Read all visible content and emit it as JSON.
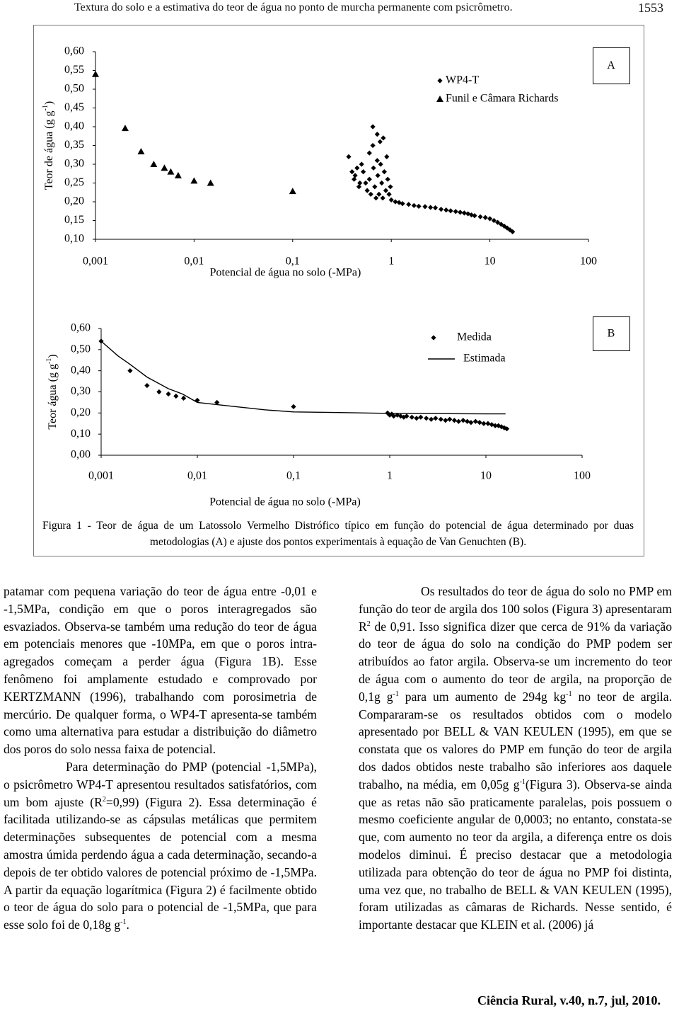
{
  "header": {
    "title": "Textura do solo e a estimativa do teor de água no ponto de murcha permanente com psicrômetro.",
    "page": "1553"
  },
  "chart_data": [
    {
      "type": "scatter",
      "panel": "A",
      "xscale": "log",
      "xlim": [
        0.001,
        100
      ],
      "xticks": [
        {
          "value": 0.001,
          "label": "0,001"
        },
        {
          "value": 0.01,
          "label": "0,01"
        },
        {
          "value": 0.1,
          "label": "0,1"
        },
        1,
        10,
        100
      ],
      "ylim": [
        0.1,
        0.6
      ],
      "yticks": [
        {
          "value": 0.1,
          "label": "0,10"
        },
        {
          "value": 0.15,
          "label": "0,15"
        },
        {
          "value": 0.2,
          "label": "0,20"
        },
        {
          "value": 0.25,
          "label": "0,25"
        },
        {
          "value": 0.3,
          "label": "0,30"
        },
        {
          "value": 0.35,
          "label": "0,35"
        },
        {
          "value": 0.4,
          "label": "0,40"
        },
        {
          "value": 0.45,
          "label": "0,45"
        },
        {
          "value": 0.5,
          "label": "0,50"
        },
        {
          "value": 0.55,
          "label": "0,55"
        },
        {
          "value": 0.6,
          "label": "0,60"
        }
      ],
      "xlabel": "Potencial de água no solo (-MPa)",
      "ylabel": {
        "text": "Teor de água (g g",
        "sup": "-1",
        "end": ")"
      },
      "legend": "upper right",
      "series": [
        {
          "name": "WP4-T",
          "style": "diamond",
          "color": "#000000",
          "x": [
            0.37,
            0.4,
            0.42,
            0.43,
            0.45,
            0.47,
            0.48,
            0.5,
            0.52,
            0.55,
            0.57,
            0.6,
            0.6,
            0.62,
            0.65,
            0.65,
            0.66,
            0.68,
            0.7,
            0.72,
            0.72,
            0.73,
            0.75,
            0.77,
            0.78,
            0.8,
            0.82,
            0.83,
            0.85,
            0.88,
            0.9,
            0.92,
            0.95,
            0.98,
            1.0,
            1.1,
            1.2,
            1.3,
            1.5,
            1.7,
            1.9,
            2.2,
            2.5,
            2.8,
            3.2,
            3.6,
            4,
            4.5,
            5,
            5.5,
            6,
            6.5,
            7,
            8,
            9,
            10,
            11,
            12,
            13,
            14,
            15,
            16,
            17
          ],
          "values": [
            0.32,
            0.28,
            0.26,
            0.27,
            0.29,
            0.24,
            0.25,
            0.3,
            0.28,
            0.25,
            0.23,
            0.33,
            0.26,
            0.22,
            0.4,
            0.35,
            0.29,
            0.24,
            0.21,
            0.38,
            0.31,
            0.27,
            0.22,
            0.36,
            0.3,
            0.25,
            0.21,
            0.37,
            0.28,
            0.23,
            0.32,
            0.26,
            0.22,
            0.24,
            0.205,
            0.2,
            0.198,
            0.195,
            0.193,
            0.19,
            0.188,
            0.187,
            0.185,
            0.184,
            0.18,
            0.178,
            0.176,
            0.174,
            0.172,
            0.17,
            0.168,
            0.165,
            0.163,
            0.16,
            0.158,
            0.155,
            0.15,
            0.145,
            0.14,
            0.135,
            0.13,
            0.125,
            0.12
          ]
        },
        {
          "name": "Funil e Câmara Richards",
          "style": "triangle",
          "color": "#000000",
          "x": [
            0.001,
            0.002,
            0.0029,
            0.0039,
            0.005,
            0.0058,
            0.0069,
            0.01,
            0.0147,
            0.1
          ],
          "values": [
            0.54,
            0.396,
            0.334,
            0.3,
            0.29,
            0.28,
            0.27,
            0.256,
            0.25,
            0.228
          ]
        }
      ]
    },
    {
      "type": "scatter",
      "panel": "B",
      "xscale": "log",
      "xlim": [
        0.001,
        100
      ],
      "xticks": [
        {
          "value": 0.001,
          "label": "0,001"
        },
        {
          "value": 0.01,
          "label": "0,01"
        },
        {
          "value": 0.1,
          "label": "0,1"
        },
        1,
        10,
        100
      ],
      "ylim": [
        0,
        0.6
      ],
      "yticks": [
        {
          "value": 0,
          "label": "0,00"
        },
        {
          "value": 0.1,
          "label": "0,10"
        },
        {
          "value": 0.2,
          "label": "0,20"
        },
        {
          "value": 0.3,
          "label": "0,30"
        },
        {
          "value": 0.4,
          "label": "0,40"
        },
        {
          "value": 0.5,
          "label": "0,50"
        },
        {
          "value": 0.6,
          "label": "0,60"
        }
      ],
      "xlabel": "Potencial de água no solo (-MPa)",
      "ylabel": {
        "text": "Teor água  (g g",
        "sup": "-1",
        "end": ")"
      },
      "legend": "upper right",
      "series": [
        {
          "name": "Medida",
          "style": "diamond",
          "color": "#000000",
          "x": [
            0.001,
            0.002,
            0.003,
            0.004,
            0.005,
            0.006,
            0.0072,
            0.01,
            0.016,
            0.1,
            0.95,
            1.0,
            1.05,
            1.1,
            1.2,
            1.3,
            1.4,
            1.5,
            1.7,
            1.9,
            2.1,
            2.4,
            2.7,
            3.0,
            3.4,
            3.8,
            4.2,
            4.7,
            5.2,
            5.8,
            6.4,
            7.0,
            7.8,
            8.6,
            9.5,
            10.5,
            11.5,
            12.5,
            13.5,
            14.5,
            15.5,
            16.5
          ],
          "values": [
            0.54,
            0.4,
            0.33,
            0.3,
            0.29,
            0.28,
            0.27,
            0.26,
            0.25,
            0.23,
            0.2,
            0.19,
            0.195,
            0.185,
            0.19,
            0.185,
            0.18,
            0.185,
            0.18,
            0.175,
            0.18,
            0.175,
            0.17,
            0.175,
            0.17,
            0.165,
            0.17,
            0.165,
            0.16,
            0.165,
            0.16,
            0.155,
            0.16,
            0.155,
            0.15,
            0.15,
            0.145,
            0.14,
            0.14,
            0.135,
            0.13,
            0.125
          ]
        },
        {
          "name": "Estimada",
          "style": "line",
          "color": "#000000",
          "x": [
            0.001,
            0.0015,
            0.002,
            0.003,
            0.005,
            0.007,
            0.01,
            0.02,
            0.05,
            0.1,
            0.3,
            1,
            3,
            10,
            16
          ],
          "values": [
            0.54,
            0.47,
            0.43,
            0.37,
            0.315,
            0.29,
            0.25,
            0.235,
            0.215,
            0.205,
            0.202,
            0.198,
            0.197,
            0.196,
            0.196
          ]
        }
      ]
    }
  ],
  "caption": "Figura 1 - Teor de água de um Latossolo Vermelho Distrófico típico em função do potencial de água determinado por duas metodologias (A) e ajuste dos pontos experimentais à equação de Van Genuchten (B).",
  "columns": [
    {
      "paragraphs": [
        {
          "runs": [
            "patamar com pequena variação do teor de água entre -0,01 e -1,5MPa, condição em que o poros interagregados são esvaziados. Observa-se também uma redução do teor de água em potenciais menores que -10MPa, em que o poros intra-agregados começam a perder água (Figura 1B). Esse fenômeno foi amplamente estudado e comprovado por KERTZMANN (1996), trabalhando com porosimetria de mercúrio. De qualquer forma, o WP4-T apresenta-se também como uma alternativa para estudar a distribuição do diâmetro dos poros do solo nessa faixa de potencial."
          ]
        },
        {
          "runs": [
            "Para determinação do PMP (potencial -1,5MPa), o psicrômetro WP4-T apresentou resultados satisfatórios, com um bom ajuste (R",
            {
              "sup": "2"
            },
            "=0,99) (Figura 2). Essa determinação é facilitada utilizando-se as cápsulas metálicas que permitem determinações subsequentes de potencial com a mesma amostra úmida perdendo água a cada determinação, secando-a depois de ter obtido valores de potencial próximo de -1,5MPa. A partir da equação logarítmica (Figura 2) é facilmente obtido o teor de água do solo para o potencial de -1,5MPa, que para esse solo foi de 0,18g g",
            {
              "sup": "-1"
            },
            "."
          ]
        }
      ]
    },
    {
      "paragraphs": [
        {
          "runs": [
            "Os resultados do teor de água do solo no PMP em função do teor de argila dos 100 solos (Figura 3) apresentaram R",
            {
              "sup": "2"
            },
            " de 0,91. Isso significa dizer que cerca de 91% da variação do teor de água do solo na condição do PMP podem ser atribuídos ao fator argila. Observa-se um incremento do teor de água com o aumento do teor de argila, na proporção de 0,1g g",
            {
              "sup": "-1"
            },
            " para um aumento de 294g kg",
            {
              "sup": "-1"
            },
            " no teor de argila. Compararam-se os resultados obtidos com o modelo apresentado por BELL & VAN KEULEN (1995), em que se constata que os valores do PMP em função do teor de argila dos dados obtidos neste trabalho são inferiores aos daquele trabalho, na média, em 0,05g g",
            {
              "sup": "-1"
            },
            "(Figura 3). Observa-se ainda que as retas não são praticamente paralelas, pois possuem o mesmo coeficiente angular de 0,0003; no entanto, constata-se que, com aumento no teor da argila, a diferença entre os dois modelos diminui. É preciso destacar que a metodologia utilizada para obtenção do teor de água no PMP foi distinta, uma vez que, no trabalho de BELL & VAN KEULEN (1995), foram utilizadas as câmaras de Richards. Nesse sentido, é importante destacar que KLEIN et al. (2006) já"
          ]
        }
      ]
    }
  ],
  "footer": "Ciência Rural, v.40, n.7, jul, 2010."
}
